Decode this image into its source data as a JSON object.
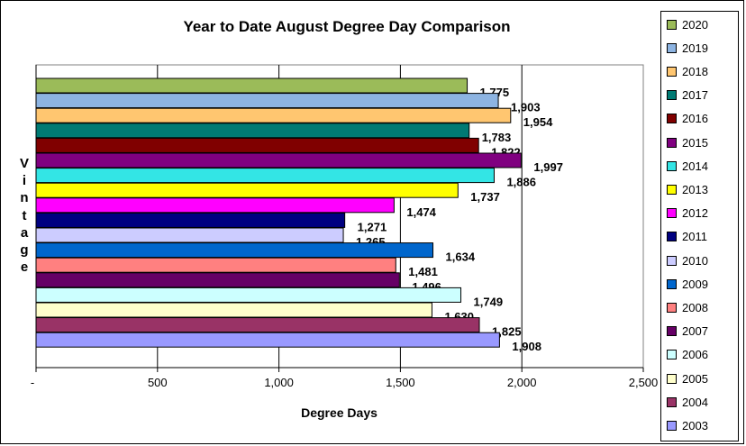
{
  "chart_data": {
    "type": "bar",
    "orientation": "horizontal",
    "title": "Year to Date August Degree Day Comparison",
    "xlabel": "Degree Days",
    "ylabel": "Vintage",
    "xlim": [
      0,
      2500
    ],
    "xticks": [
      "-",
      "500",
      "1,000",
      "1,500",
      "2,000",
      "2,500"
    ],
    "legend_position": "right",
    "grid": "vertical",
    "series": [
      {
        "name": "2020",
        "value": 1775,
        "label": "1,775",
        "color": "#9BBB59"
      },
      {
        "name": "2019",
        "value": 1903,
        "label": "1,903",
        "color": "#8DB4E2"
      },
      {
        "name": "2018",
        "value": 1954,
        "label": "1,954",
        "color": "#FFC670"
      },
      {
        "name": "2017",
        "value": 1783,
        "label": "1,783",
        "color": "#007A73"
      },
      {
        "name": "2016",
        "value": 1822,
        "label": "1,822",
        "color": "#800000"
      },
      {
        "name": "2015",
        "value": 1997,
        "label": "1,997",
        "color": "#800080"
      },
      {
        "name": "2014",
        "value": 1886,
        "label": "1,886",
        "color": "#33E5E5"
      },
      {
        "name": "2013",
        "value": 1737,
        "label": "1,737",
        "color": "#FFFF00"
      },
      {
        "name": "2012",
        "value": 1474,
        "label": "1,474",
        "color": "#FF00FF"
      },
      {
        "name": "2011",
        "value": 1271,
        "label": "1,271",
        "color": "#000080"
      },
      {
        "name": "2010",
        "value": 1265,
        "label": "1,265",
        "color": "#CCCCFF"
      },
      {
        "name": "2009",
        "value": 1634,
        "label": "1,634",
        "color": "#0066CC"
      },
      {
        "name": "2008",
        "value": 1481,
        "label": "1,481",
        "color": "#FF8080"
      },
      {
        "name": "2007",
        "value": 1496,
        "label": "1,496",
        "color": "#660066"
      },
      {
        "name": "2006",
        "value": 1749,
        "label": "1,749",
        "color": "#CCFFFF"
      },
      {
        "name": "2005",
        "value": 1630,
        "label": "1,630",
        "color": "#FFFFCC"
      },
      {
        "name": "2004",
        "value": 1825,
        "label": "1,825",
        "color": "#993366"
      },
      {
        "name": "2003",
        "value": 1908,
        "label": "1,908",
        "color": "#9999FF"
      }
    ]
  }
}
